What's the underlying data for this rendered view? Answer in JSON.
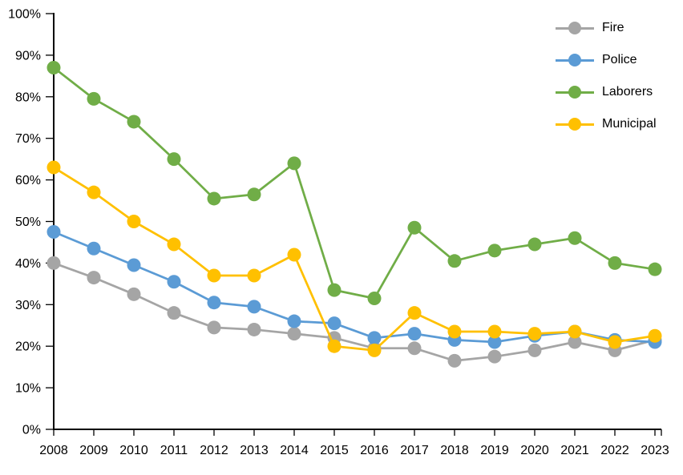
{
  "chart_data": {
    "type": "line",
    "title": "",
    "xlabel": "",
    "ylabel": "",
    "x": [
      "2008",
      "2009",
      "2010",
      "2011",
      "2012",
      "2013",
      "2014",
      "2015",
      "2016",
      "2017",
      "2018",
      "2019",
      "2020",
      "2021",
      "2022",
      "2023"
    ],
    "series": [
      {
        "name": "Fire",
        "color": "#A5A5A5",
        "values": [
          40,
          36.5,
          32.5,
          28,
          24.5,
          24,
          23,
          22,
          19.5,
          19.5,
          16.5,
          17.5,
          19,
          21,
          19,
          21.5
        ]
      },
      {
        "name": "Police",
        "color": "#5B9BD5",
        "values": [
          47.5,
          43.5,
          39.5,
          35.5,
          30.5,
          29.5,
          26,
          25.5,
          22,
          23,
          21.5,
          21,
          22.5,
          23.5,
          21.5,
          21
        ]
      },
      {
        "name": "Laborers",
        "color": "#70AD47",
        "values": [
          87,
          79.5,
          74,
          65,
          55.5,
          56.5,
          64,
          33.5,
          31.5,
          48.5,
          40.5,
          43,
          44.5,
          46,
          40,
          38.5
        ]
      },
      {
        "name": "Municipal",
        "color": "#FFC000",
        "values": [
          63,
          57,
          50,
          44.5,
          37,
          37,
          42,
          20,
          19,
          28,
          23.5,
          23.5,
          23,
          23.5,
          21,
          22.5
        ]
      }
    ],
    "ylim": [
      0,
      100
    ],
    "ytick_step": 10,
    "ytick_suffix": "%",
    "grid": false,
    "legend_position": "top-right",
    "legend_entries": [
      "Fire",
      "Police",
      "Laborers",
      "Municipal"
    ],
    "axis_color": "#000000",
    "text_color": "#000000",
    "background_color": "#FFFFFF"
  }
}
